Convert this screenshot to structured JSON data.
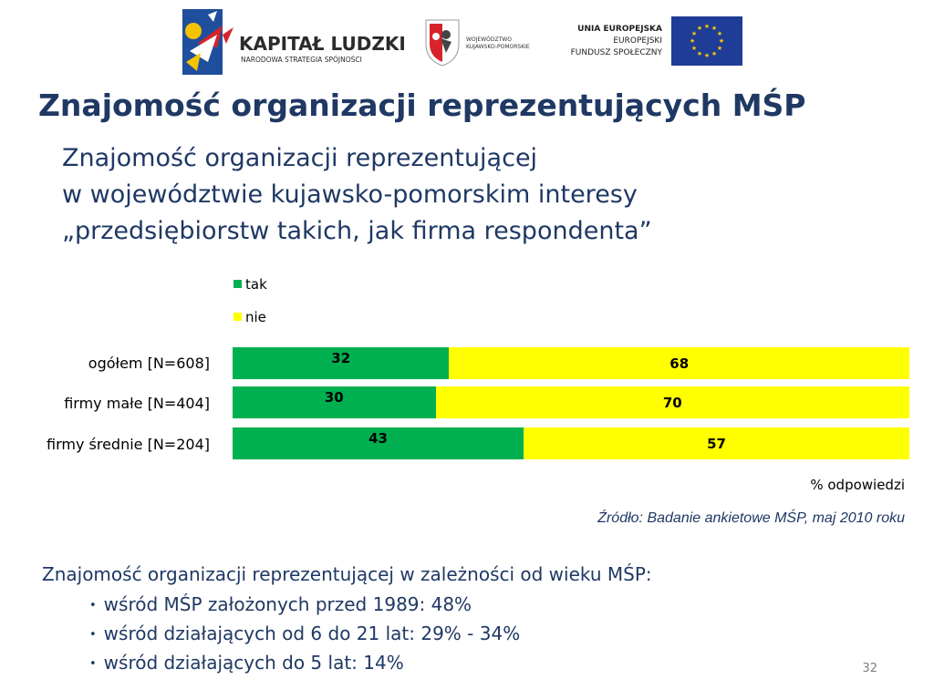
{
  "logos": {
    "kapital_ludzki": {
      "title": "KAPITAŁ LUDZKI",
      "subtitle": "NARODOWA STRATEGIA SPÓJNOŚCI"
    },
    "wojewodztwo": {
      "line1": "WOJEWÓDZTWO",
      "line2": "KUJAWSKO-POMORSKIE"
    },
    "eu": {
      "line1": "UNIA EUROPEJSKA",
      "line2": "EUROPEJSKI",
      "line3": "FUNDUSZ SPOŁECZNY",
      "flag_color": "#1f3c96",
      "star_color": "#ffcc00"
    }
  },
  "title": "Znajomość organizacji reprezentujących MŚP",
  "subtitle": {
    "line1": "Znajomość organizacji reprezentującej",
    "line2": "w województwie kujawsko-pomorskim interesy",
    "line3": "„przedsiębiorstw takich, jak firma respondenta”"
  },
  "chart_data": {
    "type": "bar",
    "orientation": "horizontal",
    "stacked": true,
    "categories": [
      "ogółem [N=608]",
      "firmy małe [N=404]",
      "firmy średnie [N=204]"
    ],
    "series": [
      {
        "name": "tak",
        "values": [
          32,
          30,
          43
        ],
        "color": "#00b050"
      },
      {
        "name": "nie",
        "values": [
          68,
          70,
          57
        ],
        "color": "#ffff00"
      }
    ],
    "xlabel": "% odpowiedzi",
    "xlim": [
      0,
      100
    ],
    "grid": false,
    "legend_position": "top-left"
  },
  "source": "Źródło: Badanie ankietowe MŚP, maj 2010 roku",
  "note": {
    "intro": "Znajomość organizacji reprezentującej w zależności od wieku MŚP:",
    "items": [
      "wśród MŚP założonych przed 1989: 48%",
      "wśród działających od 6 do 21 lat: 29% - 34%",
      "wśród działających do 5 lat: 14%"
    ]
  },
  "page_number": "32",
  "colors": {
    "title": "#1f3864",
    "text": "#1f3864"
  }
}
